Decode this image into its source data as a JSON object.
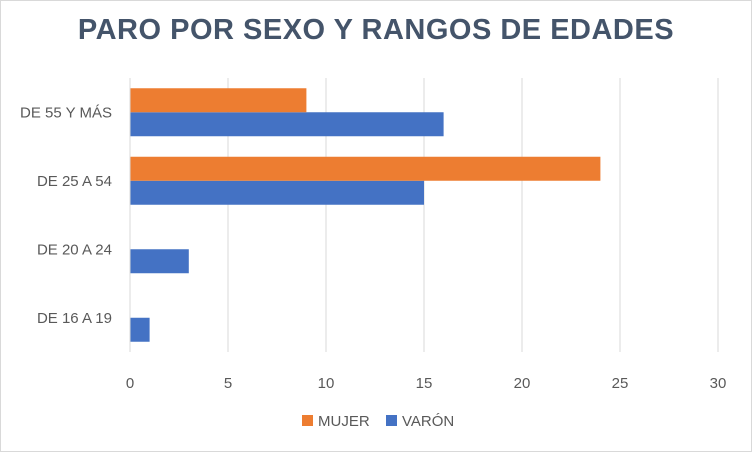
{
  "chart_data": {
    "type": "bar",
    "orientation": "horizontal",
    "title": "PARO POR SEXO Y RANGOS DE EDADES",
    "categories": [
      "DE 16 A 19",
      "DE 20 A 24",
      "DE 25 A 54",
      "DE 55 Y MÁS"
    ],
    "series": [
      {
        "name": "VARÓN",
        "color": "#4472c4",
        "values": [
          1,
          3,
          15,
          16
        ]
      },
      {
        "name": "MUJER",
        "color": "#ed7d31",
        "values": [
          0,
          0,
          24,
          9
        ]
      }
    ],
    "xlim": [
      0,
      30
    ],
    "xticks": [
      "0",
      "5",
      "10",
      "15",
      "20",
      "25",
      "30"
    ],
    "grid": true,
    "legend_position": "bottom"
  }
}
